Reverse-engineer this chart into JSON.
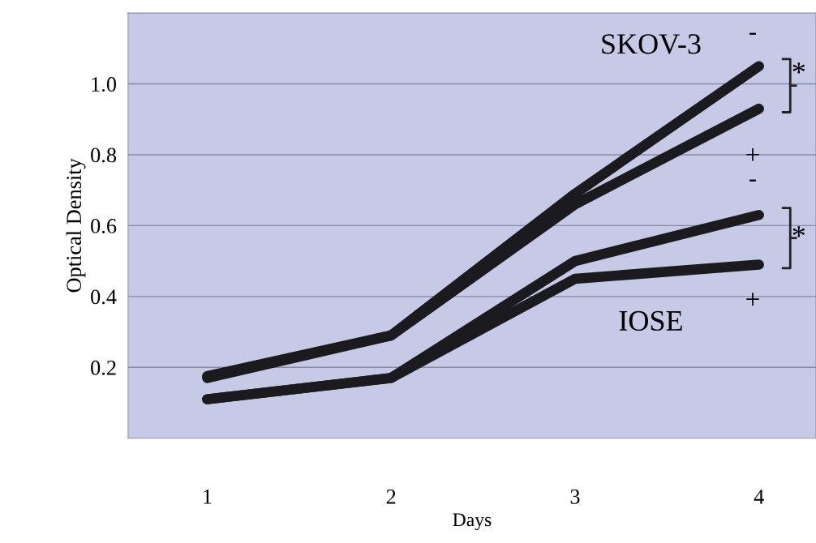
{
  "chart_data": {
    "type": "line",
    "xlabel": "Days",
    "ylabel": "Optical Density",
    "x": [
      1,
      2,
      3,
      4
    ],
    "xlim": [
      0.57,
      4.31
    ],
    "xticks": [
      1,
      2,
      3,
      4
    ],
    "ylim": [
      0,
      1.2
    ],
    "yticks": [
      0.2,
      0.4,
      0.6,
      0.8,
      {
        "value": 1,
        "label": "1.0"
      }
    ],
    "grid": "y",
    "line_style": "solid",
    "series": [
      {
        "color": "#1a1a1f",
        "values": [
          0.175,
          0.29,
          0.69,
          1.05
        ]
      },
      {
        "color": "#1a1a1f",
        "values": [
          0.17,
          0.29,
          0.66,
          0.93
        ]
      },
      {
        "color": "#1a1a1f",
        "values": [
          0.11,
          0.17,
          0.5,
          0.63
        ]
      },
      {
        "color": "#1a1a1f",
        "values": [
          0.11,
          0.17,
          0.45,
          0.49
        ]
      }
    ],
    "annotations": [
      "SKOV-3",
      "IOSE",
      "-",
      "+",
      "-",
      "+",
      "*",
      "*"
    ]
  }
}
